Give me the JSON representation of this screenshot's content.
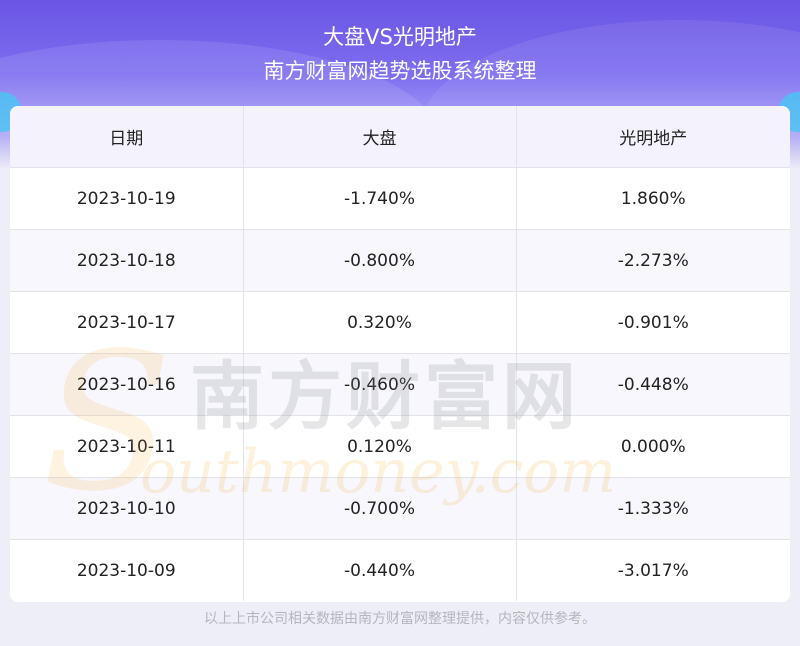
{
  "header": {
    "title": "大盘VS光明地产",
    "subtitle": "南方财富网趋势选股系统整理"
  },
  "table": {
    "headers": [
      "日期",
      "大盘",
      "光明地产"
    ],
    "rows": [
      [
        "2023-10-19",
        "-1.740%",
        "1.860%"
      ],
      [
        "2023-10-18",
        "-0.800%",
        "-2.273%"
      ],
      [
        "2023-10-17",
        "0.320%",
        "-0.901%"
      ],
      [
        "2023-10-16",
        "-0.460%",
        "-0.448%"
      ],
      [
        "2023-10-11",
        "0.120%",
        "0.000%"
      ],
      [
        "2023-10-10",
        "-0.700%",
        "-1.333%"
      ],
      [
        "2023-10-09",
        "-0.440%",
        "-3.017%"
      ]
    ]
  },
  "watermark": {
    "cn": "南方财富网",
    "en": "outhmoney.com",
    "logo_letter": "S"
  },
  "footer": {
    "note": "以上上市公司相关数据由南方财富网整理提供，内容仅供参考。"
  },
  "colors": {
    "header_gradient_top": "#6a55e4",
    "watermark_orange": "#f5a623",
    "accent_cyan": "#48c6f2"
  }
}
